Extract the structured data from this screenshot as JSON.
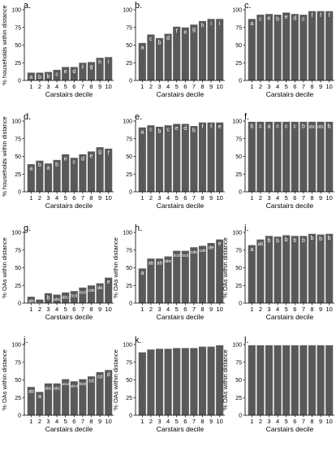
{
  "figure": {
    "bar_color": "#595959",
    "bar_label_color": "#ffffff",
    "axis_color": "#000000",
    "background": "#ffffff"
  },
  "chart_data": [
    {
      "panel": "a.",
      "type": "bar",
      "xlabel": "Carstairs decile",
      "ylabel": "% households within distance",
      "ylim": [
        0,
        100
      ],
      "yticks": [
        0,
        25,
        50,
        75,
        100
      ],
      "grid": false,
      "categories": [
        "1",
        "2",
        "3",
        "4",
        "5",
        "6",
        "7",
        "8",
        "9",
        "10"
      ],
      "values": [
        11,
        11,
        12,
        15,
        19,
        19,
        25,
        26,
        32,
        33
      ],
      "labels": [
        "a",
        "b",
        "b",
        "c",
        "e",
        "d",
        "f",
        "g",
        "h",
        "i"
      ]
    },
    {
      "panel": "b.",
      "type": "bar",
      "xlabel": "Carstairs decile",
      "ylabel": "",
      "ylim": [
        0,
        100
      ],
      "yticks": [
        0,
        25,
        50,
        75,
        100
      ],
      "grid": false,
      "categories": [
        "1",
        "2",
        "3",
        "4",
        "5",
        "6",
        "7",
        "8",
        "9",
        "10"
      ],
      "values": [
        53,
        65,
        60,
        66,
        76,
        75,
        79,
        84,
        87,
        87
      ],
      "labels": [
        "a",
        "c",
        "b",
        "d",
        "f",
        "e",
        "g",
        "h",
        "i",
        "i"
      ]
    },
    {
      "panel": "c.",
      "type": "bar",
      "xlabel": "Carstairs decile",
      "ylabel": "",
      "ylim": [
        0,
        100
      ],
      "yticks": [
        0,
        25,
        50,
        75,
        100
      ],
      "grid": false,
      "categories": [
        "1",
        "2",
        "3",
        "4",
        "5",
        "6",
        "7",
        "8",
        "9",
        "10"
      ],
      "values": [
        87,
        93,
        94,
        93,
        96,
        94,
        93,
        98,
        98,
        98
      ],
      "labels": [
        "a",
        "c",
        "e",
        "b",
        "e",
        "d",
        "c",
        "f",
        "f",
        "f"
      ]
    },
    {
      "panel": "d.",
      "type": "bar",
      "xlabel": "Carstairs decile",
      "ylabel": "% households within distance",
      "ylim": [
        0,
        100
      ],
      "yticks": [
        0,
        25,
        50,
        75,
        100
      ],
      "grid": false,
      "categories": [
        "1",
        "2",
        "3",
        "4",
        "5",
        "6",
        "7",
        "8",
        "9",
        "10"
      ],
      "values": [
        39,
        44,
        40,
        45,
        53,
        48,
        53,
        57,
        63,
        61
      ],
      "labels": [
        "a",
        "b",
        "a",
        "b",
        "e",
        "c",
        "d",
        "e",
        "g",
        "f"
      ]
    },
    {
      "panel": "e.",
      "type": "bar",
      "xlabel": "Carstairs decile",
      "ylabel": "",
      "ylim": [
        0,
        100
      ],
      "yticks": [
        0,
        25,
        50,
        75,
        100
      ],
      "grid": false,
      "categories": [
        "1",
        "2",
        "3",
        "4",
        "5",
        "6",
        "7",
        "8",
        "9",
        "10"
      ],
      "values": [
        91,
        94,
        92,
        94,
        96,
        96,
        93,
        98,
        98,
        98
      ],
      "labels": [
        "a",
        "c",
        "b",
        "c",
        "e",
        "d",
        "b",
        "f",
        "f",
        "e"
      ]
    },
    {
      "panel": "f.",
      "type": "bar",
      "xlabel": "Carstairs decile",
      "ylabel": "",
      "ylim": [
        0,
        100
      ],
      "yticks": [
        0,
        25,
        50,
        75,
        100
      ],
      "grid": false,
      "categories": [
        "1",
        "2",
        "3",
        "4",
        "5",
        "6",
        "7",
        "8",
        "9",
        "10"
      ],
      "values": [
        99,
        99,
        99,
        99,
        99,
        99,
        99,
        99,
        99,
        99
      ],
      "labels": [
        "b",
        "c",
        "a",
        "c",
        "c",
        "c",
        "b",
        "abc",
        "abc",
        "b"
      ]
    },
    {
      "panel": "g.",
      "type": "bar",
      "xlabel": "Carstairs decile",
      "ylabel": "% OAs within distance",
      "ylim": [
        0,
        100
      ],
      "yticks": [
        0,
        25,
        50,
        75,
        100
      ],
      "grid": false,
      "categories": [
        "1",
        "2",
        "3",
        "4",
        "5",
        "6",
        "7",
        "8",
        "9",
        "10"
      ],
      "values": [
        9,
        5,
        14,
        12,
        15,
        17,
        22,
        25,
        28,
        36
      ],
      "labels": [
        "ab",
        "a",
        "b",
        "abc",
        "abc",
        "bcd",
        "bcd",
        "cde",
        "de",
        "e"
      ]
    },
    {
      "panel": "h.",
      "type": "bar",
      "xlabel": "Carstairs decile",
      "ylabel": "% OAs within distance",
      "ylim": [
        0,
        100
      ],
      "yticks": [
        0,
        25,
        50,
        75,
        100
      ],
      "grid": false,
      "categories": [
        "1",
        "2",
        "3",
        "4",
        "5",
        "6",
        "7",
        "8",
        "9",
        "10"
      ],
      "values": [
        49,
        63,
        63,
        66,
        74,
        74,
        79,
        81,
        85,
        90
      ],
      "labels": [
        "a",
        "ab",
        "ab",
        "abc",
        "bcd",
        "bcd",
        "cde",
        "cde",
        "de",
        "e"
      ]
    },
    {
      "panel": "i.",
      "type": "bar",
      "xlabel": "Carstairs decile",
      "ylabel": "% OAs within distance",
      "ylim": [
        0,
        100
      ],
      "yticks": [
        0,
        25,
        50,
        75,
        100
      ],
      "grid": false,
      "categories": [
        "1",
        "2",
        "3",
        "4",
        "5",
        "6",
        "7",
        "8",
        "9",
        "10"
      ],
      "values": [
        82,
        90,
        95,
        94,
        96,
        95,
        95,
        98,
        97,
        98
      ],
      "labels": [
        "a",
        "ab",
        "b",
        "b",
        "b",
        "b",
        "b",
        "b",
        "b",
        "b"
      ]
    },
    {
      "panel": "j.",
      "type": "bar",
      "xlabel": "Carstairs decile",
      "ylabel": "% OAs within distance",
      "ylim": [
        0,
        100
      ],
      "yticks": [
        0,
        25,
        50,
        75,
        100
      ],
      "grid": false,
      "categories": [
        "1",
        "2",
        "3",
        "4",
        "5",
        "6",
        "7",
        "8",
        "9",
        "10"
      ],
      "values": [
        40,
        33,
        45,
        45,
        51,
        48,
        51,
        55,
        61,
        64
      ],
      "labels": [
        "ab",
        "a",
        "abc",
        "abc",
        "abcd",
        "abcd",
        "bcd",
        "cd",
        "cd",
        "d"
      ]
    },
    {
      "panel": "k.",
      "type": "bar",
      "xlabel": "Carstairs decile",
      "ylabel": "% OAs within distance",
      "ylim": [
        0,
        100
      ],
      "yticks": [
        0,
        25,
        50,
        75,
        100
      ],
      "grid": false,
      "categories": [
        "1",
        "2",
        "3",
        "4",
        "5",
        "6",
        "7",
        "8",
        "9",
        "10"
      ],
      "values": [
        89,
        93,
        94,
        94,
        95,
        95,
        95,
        97,
        97,
        99
      ],
      "labels": [
        "",
        "",
        "",
        "",
        "",
        "",
        "",
        "",
        "",
        ""
      ]
    },
    {
      "panel": "l.",
      "type": "bar",
      "xlabel": "Carstairs decile",
      "ylabel": "% OAs within distance",
      "ylim": [
        0,
        100
      ],
      "yticks": [
        0,
        25,
        50,
        75,
        100
      ],
      "grid": false,
      "categories": [
        "1",
        "2",
        "3",
        "4",
        "5",
        "6",
        "7",
        "8",
        "9",
        "10"
      ],
      "values": [
        99,
        99,
        99,
        99,
        99,
        99,
        99,
        99,
        99,
        99
      ],
      "labels": [
        "",
        "",
        "",
        "",
        "",
        "",
        "",
        "",
        "",
        ""
      ]
    }
  ]
}
